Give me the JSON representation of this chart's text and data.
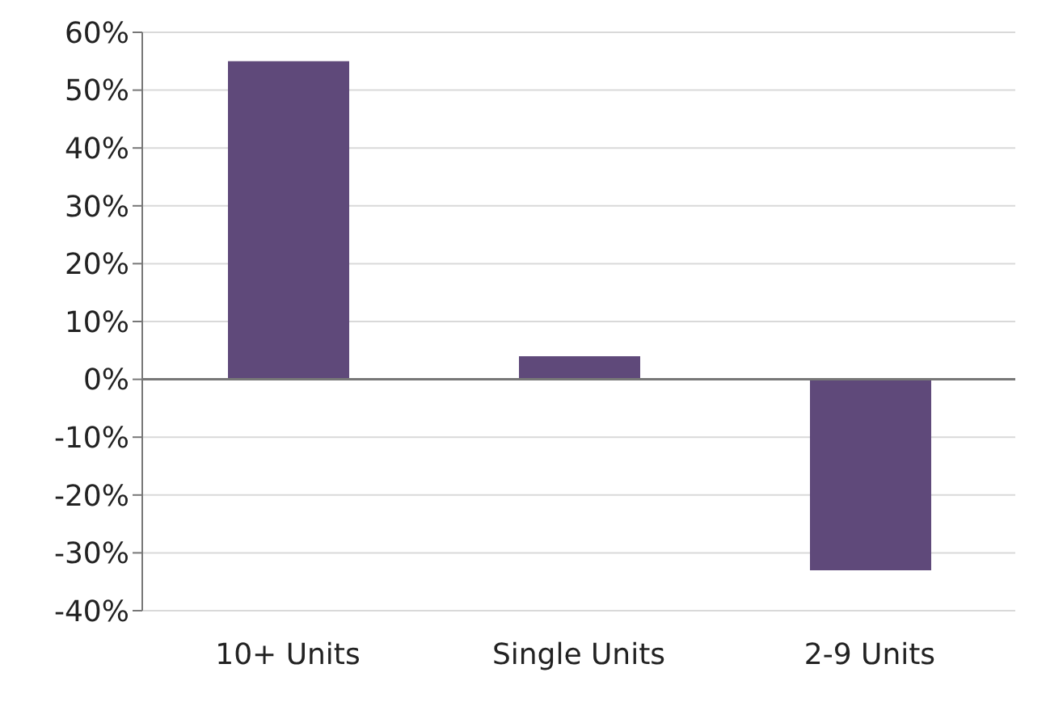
{
  "chart_data": {
    "type": "bar",
    "categories": [
      "10+ Units",
      "Single Units",
      "2-9 Units"
    ],
    "values": [
      55,
      4,
      -33
    ],
    "color": "#5f497a",
    "ylim": [
      -40,
      60
    ],
    "yticks": [
      {
        "value": -40,
        "label": "-40%"
      },
      {
        "value": -30,
        "label": "-30%"
      },
      {
        "value": -20,
        "label": "-20%"
      },
      {
        "value": -10,
        "label": "-10%"
      },
      {
        "value": 0,
        "label": "0%"
      },
      {
        "value": 10,
        "label": "10%"
      },
      {
        "value": 20,
        "label": "20%"
      },
      {
        "value": 30,
        "label": "30%"
      },
      {
        "value": 40,
        "label": "40%"
      },
      {
        "value": 50,
        "label": "50%"
      },
      {
        "value": 60,
        "label": "60%"
      }
    ],
    "grid": "y"
  }
}
